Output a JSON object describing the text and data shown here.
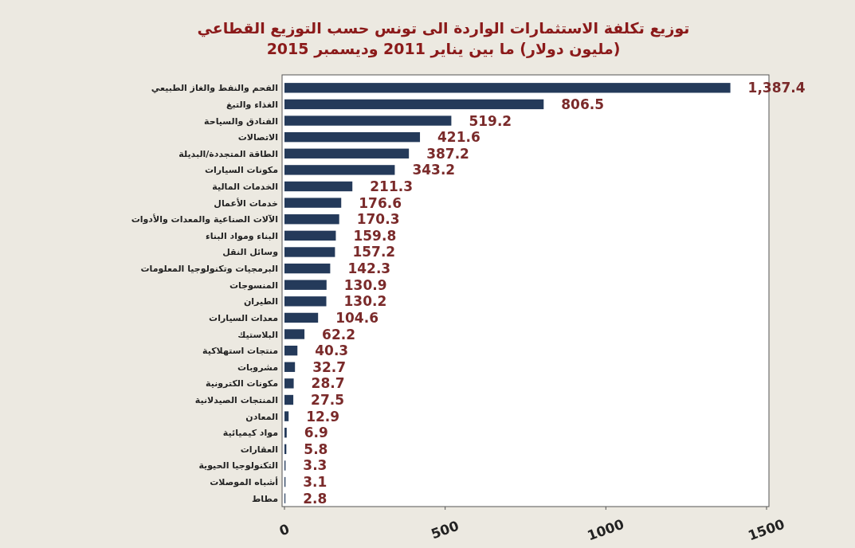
{
  "chart_data": {
    "type": "bar",
    "orientation": "horizontal",
    "title": "توزيع تكلفة الاستثمارات الواردة الى تونس حسب التوزيع  القطاعي",
    "subtitle": "(مليون دولار)   ما بين يناير 2011 وديسمبر 2015",
    "categories": [
      "الفحم والنفط والغاز الطبيعي",
      "الغذاء والتبغ",
      "الفنادق والسياحة",
      "الاتصالات",
      "الطاقة المتجددة/البديلة",
      "مكونات السيارات",
      "الخدمات المالية",
      "خدمات الأعمال",
      "الآلات الصناعية والمعدات والأدوات",
      "البناء ومواد البناء",
      "وسائل النقل",
      "البرمجيات وتكنولوجيا المعلومات",
      "المنسوجات",
      "الطيران",
      "معدات السيارات",
      "البلاستيك",
      "منتجات استهلاكية",
      "مشروبات",
      "مكونات الكترونية",
      "المنتجات الصيدلانية",
      "المعادن",
      "مواد كيميائية",
      "العقارات",
      "التكنولوجيا الحيوية",
      "أشباه الموصلات",
      "مطاط"
    ],
    "values": [
      1387.4,
      806.5,
      519.2,
      421.6,
      387.2,
      343.2,
      211.3,
      176.6,
      170.3,
      159.8,
      157.2,
      142.3,
      130.9,
      130.2,
      104.6,
      62.2,
      40.3,
      32.7,
      28.7,
      27.5,
      12.9,
      6.9,
      5.8,
      3.3,
      3.1,
      2.8
    ],
    "value_labels": [
      "1,387.4",
      "806.5",
      "519.2",
      "421.6",
      "387.2",
      "343.2",
      "211.3",
      "176.6",
      "170.3",
      "159.8",
      "157.2",
      "142.3",
      "130.9",
      "130.2",
      "104.6",
      "62.2",
      "40.3",
      "32.7",
      "28.7",
      "27.5",
      "12.9",
      "6.9",
      "5.8",
      "3.3",
      "3.1",
      "2.8"
    ],
    "color": "#243a5a",
    "xlim": [
      0,
      1500
    ],
    "xticks": [
      0,
      500,
      1000,
      1500
    ]
  }
}
